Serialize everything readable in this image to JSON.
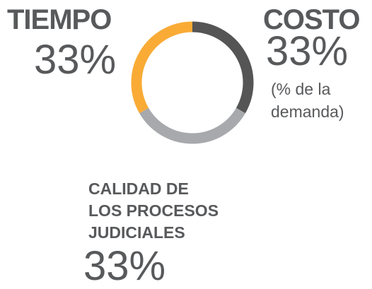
{
  "chart_data": {
    "type": "donut",
    "categories": [
      "COSTO",
      "CALIDAD DE\nLOS PROCESOS\nJUDICIALES",
      "TIEMPO"
    ],
    "values": [
      33,
      33,
      33
    ],
    "value_labels": [
      "33%",
      "33%",
      "33%"
    ],
    "colors": [
      "#555555",
      "#a7a9ac",
      "#f9ab36"
    ],
    "annotations": [
      "(% de la\ndemanda)"
    ]
  }
}
